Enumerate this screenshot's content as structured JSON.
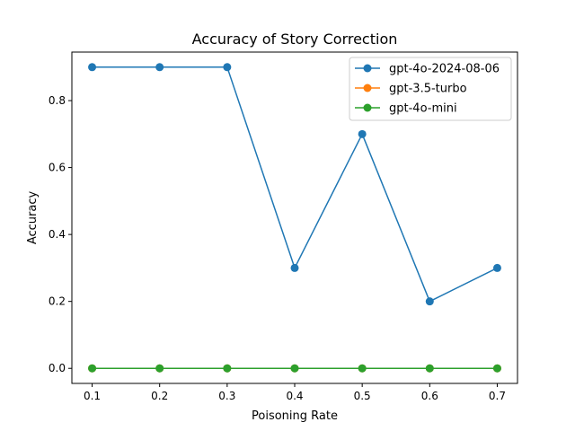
{
  "chart_data": {
    "type": "line",
    "title": "Accuracy of Story Correction",
    "xlabel": "Poisoning Rate",
    "ylabel": "Accuracy",
    "x": [
      0.1,
      0.2,
      0.3,
      0.4,
      0.5,
      0.6,
      0.7
    ],
    "xticks": [
      "0.1",
      "0.2",
      "0.3",
      "0.4",
      "0.5",
      "0.6",
      "0.7"
    ],
    "yticks": [
      "0.0",
      "0.2",
      "0.4",
      "0.6",
      "0.8"
    ],
    "ytick_values": [
      0.0,
      0.2,
      0.4,
      0.6,
      0.8
    ],
    "xlim": [
      0.07,
      0.73
    ],
    "ylim": [
      -0.045,
      0.945
    ],
    "grid": false,
    "legend_position": "upper right",
    "series": [
      {
        "name": "gpt-4o-2024-08-06",
        "color": "#1f77b4",
        "marker": "circle",
        "values": [
          0.9,
          0.9,
          0.9,
          0.3,
          0.7,
          0.2,
          0.3
        ]
      },
      {
        "name": "gpt-3.5-turbo",
        "color": "#ff7f0e",
        "marker": "circle",
        "values": [
          0.0,
          0.0,
          0.0,
          0.0,
          0.0,
          0.0,
          0.0
        ]
      },
      {
        "name": "gpt-4o-mini",
        "color": "#2ca02c",
        "marker": "circle",
        "values": [
          0.0,
          0.0,
          0.0,
          0.0,
          0.0,
          0.0,
          0.0
        ]
      }
    ]
  }
}
